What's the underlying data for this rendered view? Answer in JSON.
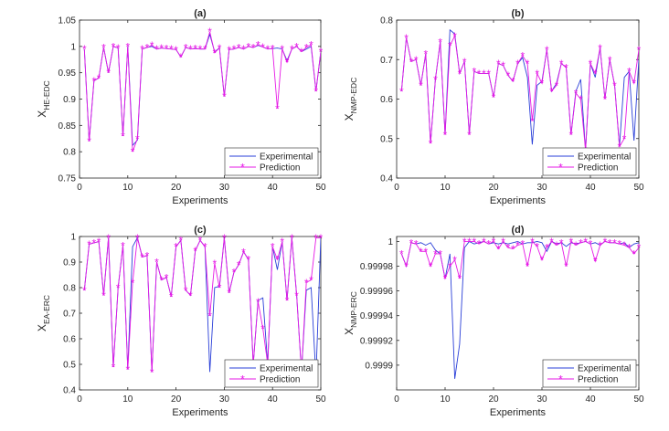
{
  "chart_data": [
    {
      "type": "line",
      "title": "(a)",
      "xlabel": "Experiments",
      "ylabel_main": "X",
      "ylabel_sub": "HE-EDC",
      "xlim": [
        0,
        50
      ],
      "ylim": [
        0.75,
        1.05
      ],
      "xticks": [
        0,
        10,
        20,
        30,
        40,
        50
      ],
      "yticks": [
        0.75,
        0.8,
        0.85,
        0.9,
        0.95,
        1,
        1.05
      ],
      "ytick_labels": [
        "0.75",
        "0.8",
        "0.85",
        "0.9",
        "0.95",
        "1",
        "1.05"
      ],
      "legend": [
        "Experimental",
        "Prediction"
      ],
      "x": [
        1,
        2,
        3,
        4,
        5,
        6,
        7,
        8,
        9,
        10,
        11,
        12,
        13,
        14,
        15,
        16,
        17,
        18,
        19,
        20,
        21,
        22,
        23,
        24,
        25,
        26,
        27,
        28,
        29,
        30,
        31,
        32,
        33,
        34,
        35,
        36,
        37,
        38,
        39,
        40,
        41,
        42,
        43,
        44,
        45,
        46,
        47,
        48,
        49,
        50
      ],
      "series": [
        {
          "name": "Experimental",
          "color": "#2a3fd8",
          "values": [
            0.995,
            0.82,
            0.935,
            0.94,
            0.998,
            0.95,
            1.0,
            0.997,
            0.83,
            1.0,
            0.812,
            0.822,
            0.995,
            0.998,
            1.0,
            0.995,
            0.997,
            0.996,
            0.995,
            0.994,
            0.98,
            0.998,
            0.995,
            0.996,
            0.995,
            0.995,
            1.023,
            0.99,
            0.997,
            0.905,
            0.994,
            0.995,
            0.998,
            0.995,
            1.0,
            0.998,
            1.002,
            0.999,
            0.995,
            0.996,
            0.997,
            0.995,
            0.973,
            0.995,
            1.0,
            0.99,
            0.995,
            1.0,
            0.915,
            0.99
          ]
        },
        {
          "name": "Prediction",
          "color": "#e619e6",
          "values": [
            0.995,
            0.82,
            0.935,
            0.94,
            0.998,
            0.95,
            1.0,
            0.997,
            0.83,
            1.0,
            0.8,
            0.825,
            0.995,
            0.998,
            1.002,
            0.995,
            0.997,
            0.996,
            0.995,
            0.994,
            0.98,
            0.998,
            0.995,
            0.996,
            0.995,
            0.995,
            1.028,
            0.988,
            0.997,
            0.905,
            0.994,
            0.995,
            0.998,
            0.995,
            1.0,
            0.998,
            1.003,
            0.999,
            0.995,
            0.996,
            0.882,
            0.995,
            0.97,
            0.995,
            1.0,
            0.99,
            0.998,
            1.003,
            0.915,
            0.99
          ]
        }
      ]
    },
    {
      "type": "line",
      "title": "(b)",
      "xlabel": "Experiments",
      "ylabel_main": "X",
      "ylabel_sub": "NMP-EDC",
      "xlim": [
        0,
        50
      ],
      "ylim": [
        0.4,
        0.8
      ],
      "xticks": [
        0,
        10,
        20,
        30,
        40,
        50
      ],
      "yticks": [
        0.4,
        0.5,
        0.6,
        0.7,
        0.8
      ],
      "ytick_labels": [
        "0.4",
        "0.5",
        "0.6",
        "0.7",
        "0.8"
      ],
      "legend": [
        "Experimental",
        "Prediction"
      ],
      "x": [
        1,
        2,
        3,
        4,
        5,
        6,
        7,
        8,
        9,
        10,
        11,
        12,
        13,
        14,
        15,
        16,
        17,
        18,
        19,
        20,
        21,
        22,
        23,
        24,
        25,
        26,
        27,
        28,
        29,
        30,
        31,
        32,
        33,
        34,
        35,
        36,
        37,
        38,
        39,
        40,
        41,
        42,
        43,
        44,
        45,
        46,
        47,
        48,
        49,
        50
      ],
      "series": [
        {
          "name": "Experimental",
          "color": "#2a3fd8",
          "values": [
            0.62,
            0.755,
            0.695,
            0.7,
            0.635,
            0.715,
            0.488,
            0.65,
            0.745,
            0.51,
            0.775,
            0.765,
            0.665,
            0.695,
            0.51,
            0.67,
            0.665,
            0.665,
            0.665,
            0.605,
            0.69,
            0.685,
            0.66,
            0.645,
            0.69,
            0.705,
            0.655,
            0.485,
            0.635,
            0.645,
            0.725,
            0.62,
            0.64,
            0.69,
            0.68,
            0.51,
            0.62,
            0.65,
            0.47,
            0.69,
            0.655,
            0.73,
            0.6,
            0.7,
            0.635,
            0.48,
            0.655,
            0.67,
            0.495,
            0.7
          ]
        },
        {
          "name": "Prediction",
          "color": "#e619e6",
          "values": [
            0.62,
            0.755,
            0.695,
            0.7,
            0.635,
            0.715,
            0.488,
            0.65,
            0.745,
            0.51,
            0.735,
            0.76,
            0.665,
            0.695,
            0.51,
            0.67,
            0.665,
            0.665,
            0.665,
            0.605,
            0.69,
            0.685,
            0.66,
            0.645,
            0.69,
            0.71,
            0.69,
            0.545,
            0.665,
            0.64,
            0.725,
            0.62,
            0.635,
            0.69,
            0.68,
            0.51,
            0.615,
            0.6,
            0.47,
            0.69,
            0.665,
            0.73,
            0.6,
            0.7,
            0.635,
            0.48,
            0.5,
            0.67,
            0.64,
            0.725
          ]
        }
      ]
    },
    {
      "type": "line",
      "title": "(c)",
      "xlabel": "Experiments",
      "ylabel_main": "X",
      "ylabel_sub": "EA-ERC",
      "xlim": [
        0,
        50
      ],
      "ylim": [
        0.4,
        1
      ],
      "xticks": [
        0,
        10,
        20,
        30,
        40,
        50
      ],
      "yticks": [
        0.4,
        0.5,
        0.6,
        0.7,
        0.8,
        0.9,
        1
      ],
      "ytick_labels": [
        "0.4",
        "0.5",
        "0.6",
        "0.7",
        "0.8",
        "0.9",
        "1"
      ],
      "legend": [
        "Experimental",
        "Prediction"
      ],
      "x": [
        1,
        2,
        3,
        4,
        5,
        6,
        7,
        8,
        9,
        10,
        11,
        12,
        13,
        14,
        15,
        16,
        17,
        18,
        19,
        20,
        21,
        22,
        23,
        24,
        25,
        26,
        27,
        28,
        29,
        30,
        31,
        32,
        33,
        34,
        35,
        36,
        37,
        38,
        39,
        40,
        41,
        42,
        43,
        44,
        45,
        46,
        47,
        48,
        49,
        50
      ],
      "series": [
        {
          "name": "Experimental",
          "color": "#2a3fd8",
          "values": [
            0.79,
            0.97,
            0.975,
            0.98,
            0.77,
            0.995,
            0.49,
            0.8,
            0.965,
            0.48,
            0.96,
            0.995,
            0.92,
            0.925,
            0.47,
            0.9,
            0.83,
            0.84,
            0.765,
            0.96,
            0.985,
            0.79,
            0.77,
            0.945,
            0.985,
            0.96,
            0.47,
            0.8,
            0.805,
            0.995,
            0.78,
            0.86,
            0.89,
            0.94,
            0.91,
            0.5,
            0.75,
            0.76,
            0.5,
            0.96,
            0.87,
            0.98,
            0.75,
            0.995,
            0.77,
            0.47,
            0.79,
            0.8,
            0.45,
            0.995
          ]
        },
        {
          "name": "Prediction",
          "color": "#e619e6",
          "values": [
            0.79,
            0.97,
            0.975,
            0.98,
            0.77,
            0.995,
            0.49,
            0.8,
            0.965,
            0.48,
            0.82,
            0.995,
            0.92,
            0.925,
            0.47,
            0.9,
            0.83,
            0.84,
            0.765,
            0.96,
            0.985,
            0.79,
            0.77,
            0.945,
            0.985,
            0.96,
            0.69,
            0.895,
            0.8,
            0.995,
            0.78,
            0.86,
            0.89,
            0.94,
            0.91,
            0.5,
            0.745,
            0.64,
            0.5,
            0.96,
            0.91,
            0.98,
            0.75,
            0.995,
            0.77,
            0.47,
            0.82,
            0.83,
            0.995,
            0.995
          ]
        }
      ]
    },
    {
      "type": "line",
      "title": "(d)",
      "xlabel": "Experiments",
      "ylabel_main": "X",
      "ylabel_sub": "NMP-ERC",
      "xlim": [
        0,
        50
      ],
      "ylim": [
        0.99988,
        1.000004
      ],
      "xticks": [
        0,
        10,
        20,
        30,
        40,
        50
      ],
      "yticks": [
        0.9999,
        0.99992,
        0.99994,
        0.99996,
        0.99998,
        1
      ],
      "ytick_labels": [
        "0.9999",
        "0.99992",
        "0.99994",
        "0.99996",
        "0.99998",
        "1"
      ],
      "legend": [
        "Experimental",
        "Prediction"
      ],
      "x": [
        1,
        2,
        3,
        4,
        5,
        6,
        7,
        8,
        9,
        10,
        11,
        12,
        13,
        14,
        15,
        16,
        17,
        18,
        19,
        20,
        21,
        22,
        23,
        24,
        25,
        26,
        27,
        28,
        29,
        30,
        31,
        32,
        33,
        34,
        35,
        36,
        37,
        38,
        39,
        40,
        41,
        42,
        43,
        44,
        45,
        46,
        47,
        48,
        49,
        50
      ],
      "series": [
        {
          "name": "Experimental",
          "color": "#2a3fd8",
          "values": [
            0.99999,
            0.99998,
            0.999999,
            0.999998,
            0.999999,
            0.999997,
            0.999999,
            0.999993,
            0.99999,
            0.99997,
            0.99999,
            0.999889,
            0.999917,
            0.999995,
            1.0,
            0.999998,
            0.999999,
            1.0,
            0.999998,
            0.999999,
            0.999998,
            0.999999,
            0.999998,
            0.999999,
            1.0,
            0.999998,
            0.999999,
            0.999999,
            1.0,
            0.999999,
            0.999992,
            1.0,
            0.999998,
            0.999999,
            0.999996,
            0.999999,
            0.999998,
            0.999999,
            1.0,
            0.999998,
            0.999999,
            0.999997,
            1.0,
            0.999999,
            0.999999,
            0.999998,
            0.999999,
            0.999995,
            0.999998,
            0.999999
          ]
        },
        {
          "name": "Prediction",
          "color": "#e619e6",
          "values": [
            0.99999,
            0.99998,
            0.999999,
            0.999998,
            0.999992,
            0.999992,
            0.99998,
            0.99999,
            0.99999,
            0.99997,
            0.99998,
            0.999985,
            0.99997,
            1.0,
            1.0,
            1.0,
            0.999998,
            1.0,
            0.999998,
            1.0,
            0.999994,
            1.0,
            0.999995,
            0.999994,
            0.999997,
            0.999998,
            0.99998,
            1.0,
            0.999996,
            0.999985,
            0.999995,
            1.0,
            0.999997,
            0.999999,
            0.99998,
            1.0,
            0.999997,
            0.999999,
            1.0,
            0.999998,
            0.999984,
            0.999997,
            1.0,
            0.999999,
            0.999999,
            0.999998,
            0.999997,
            0.999995,
            0.99999,
            0.999995
          ]
        }
      ]
    }
  ]
}
